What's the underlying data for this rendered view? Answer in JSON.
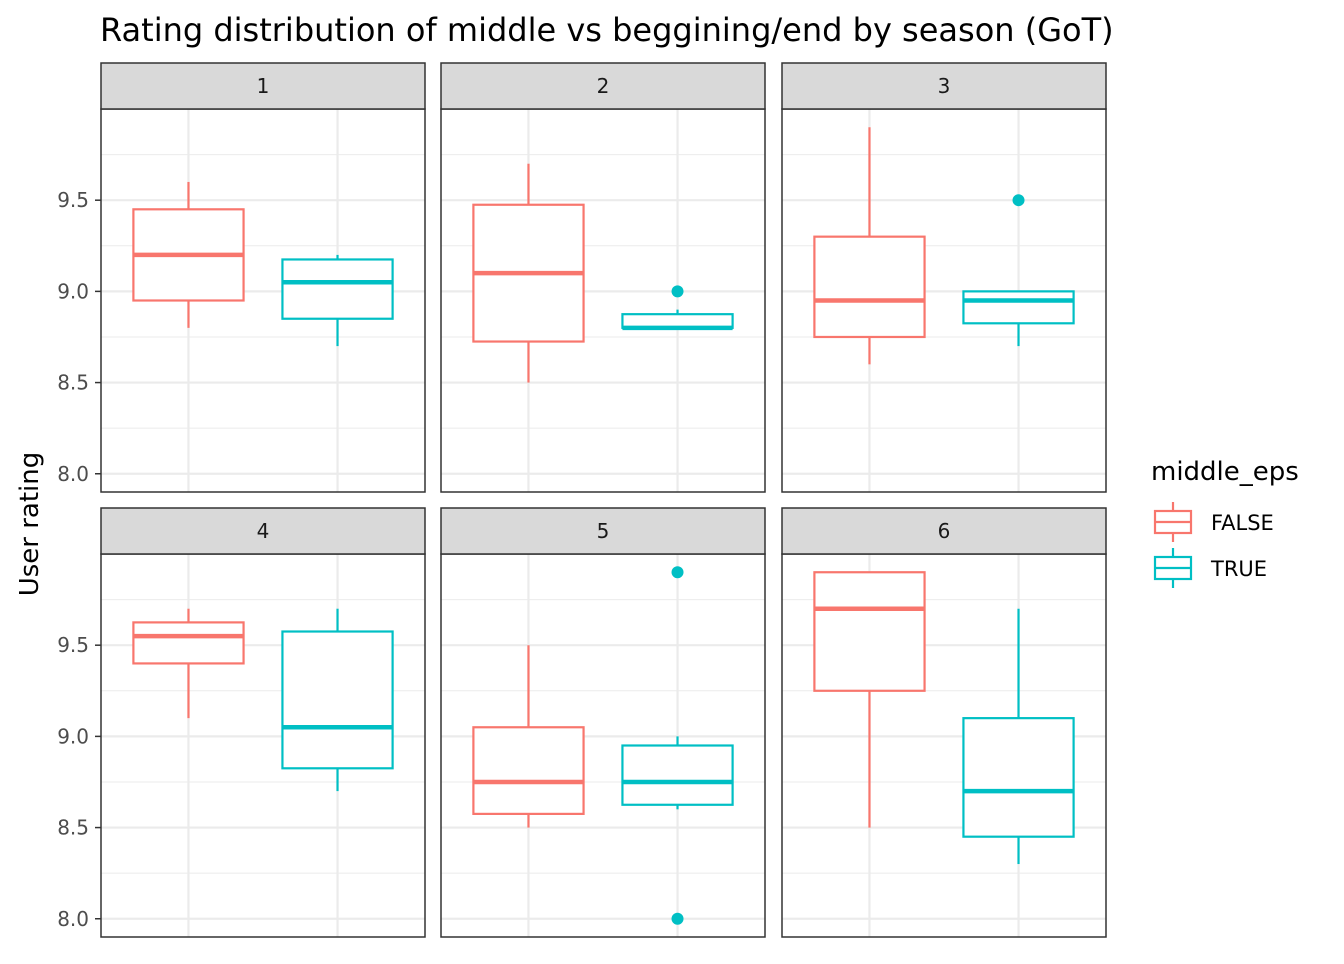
{
  "chart_data": {
    "type": "boxplot",
    "title": "Rating distribution of middle vs beggining/end by season (GoT)",
    "ylabel": "User rating",
    "xlabel": "",
    "ylim": [
      7.9,
      10.0
    ],
    "y_ticks": [
      8.0,
      8.5,
      9.0,
      9.5
    ],
    "y_tick_labels": [
      "8.0",
      "8.5",
      "9.0",
      "9.5"
    ],
    "grid": true,
    "facet_layout": "2 rows x 3 columns, shared y axis",
    "legend": {
      "title": "middle_eps",
      "position": "right",
      "entries": [
        {
          "label": "FALSE",
          "color": "#F8766D"
        },
        {
          "label": "TRUE",
          "color": "#00BFC4"
        }
      ]
    },
    "colors": {
      "FALSE": "#F8766D",
      "TRUE": "#00BFC4",
      "strip_fill": "#D9D9D9",
      "grid": "#EBEBEB"
    },
    "panels": [
      {
        "label": "1",
        "boxes": [
          {
            "group": "FALSE",
            "min": 8.8,
            "q1": 8.95,
            "median": 9.2,
            "q3": 9.45,
            "max": 9.6,
            "outliers": []
          },
          {
            "group": "TRUE",
            "min": 8.7,
            "q1": 8.85,
            "median": 9.05,
            "q3": 9.175,
            "max": 9.2,
            "outliers": []
          }
        ]
      },
      {
        "label": "2",
        "boxes": [
          {
            "group": "FALSE",
            "min": 8.5,
            "q1": 8.725,
            "median": 9.1,
            "q3": 9.475,
            "max": 9.7,
            "outliers": []
          },
          {
            "group": "TRUE",
            "min": 8.8,
            "q1": 8.8,
            "median": 8.8,
            "q3": 8.875,
            "max": 8.9,
            "outliers": [
              9.0
            ]
          }
        ]
      },
      {
        "label": "3",
        "boxes": [
          {
            "group": "FALSE",
            "min": 8.6,
            "q1": 8.75,
            "median": 8.95,
            "q3": 9.3,
            "max": 9.9,
            "outliers": []
          },
          {
            "group": "TRUE",
            "min": 8.7,
            "q1": 8.825,
            "median": 8.95,
            "q3": 9.0,
            "max": 9.0,
            "outliers": [
              9.5
            ]
          }
        ]
      },
      {
        "label": "4",
        "boxes": [
          {
            "group": "FALSE",
            "min": 9.1,
            "q1": 9.4,
            "median": 9.55,
            "q3": 9.625,
            "max": 9.7,
            "outliers": []
          },
          {
            "group": "TRUE",
            "min": 8.7,
            "q1": 8.825,
            "median": 9.05,
            "q3": 9.575,
            "max": 9.7,
            "outliers": []
          }
        ]
      },
      {
        "label": "5",
        "boxes": [
          {
            "group": "FALSE",
            "min": 8.5,
            "q1": 8.575,
            "median": 8.75,
            "q3": 9.05,
            "max": 9.5,
            "outliers": []
          },
          {
            "group": "TRUE",
            "min": 8.6,
            "q1": 8.625,
            "median": 8.75,
            "q3": 8.95,
            "max": 9.0,
            "outliers": [
              9.9,
              8.0
            ]
          }
        ]
      },
      {
        "label": "6",
        "boxes": [
          {
            "group": "FALSE",
            "min": 8.5,
            "q1": 9.25,
            "median": 9.7,
            "q3": 9.9,
            "max": 9.9,
            "outliers": []
          },
          {
            "group": "TRUE",
            "min": 8.3,
            "q1": 8.45,
            "median": 8.7,
            "q3": 9.1,
            "max": 9.7,
            "outliers": []
          }
        ]
      }
    ]
  }
}
